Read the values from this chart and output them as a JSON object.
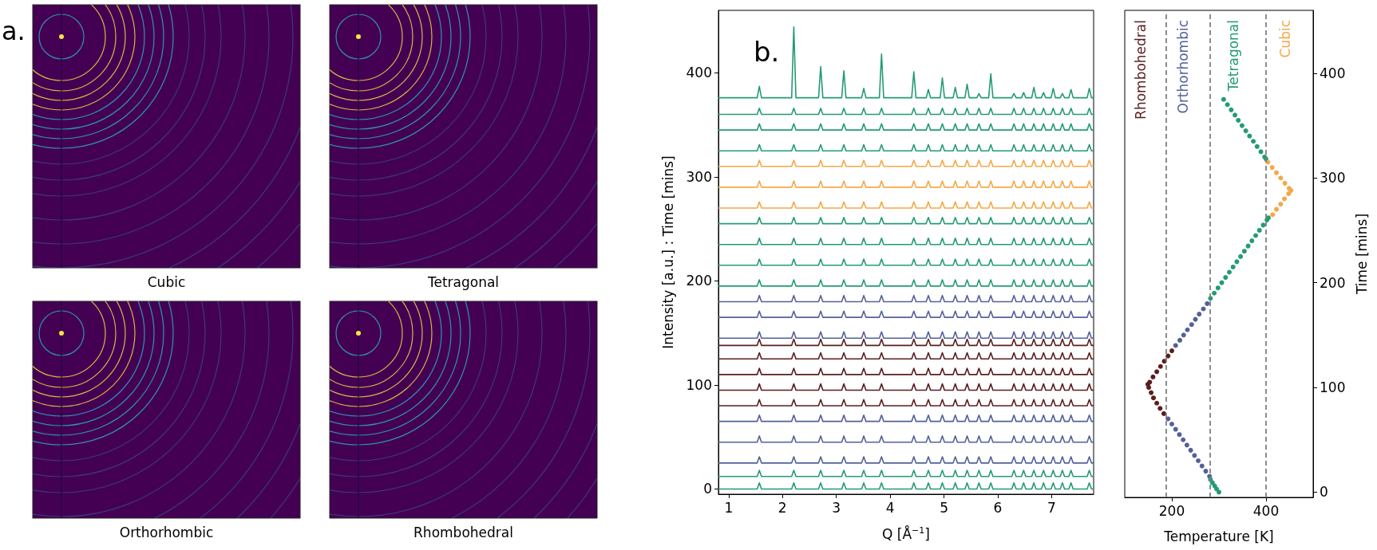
{
  "chart_data": [
    {
      "type": "other",
      "title": "a.",
      "annotations": [
        "Cubic",
        "Tetragonal",
        "Orthorhombic",
        "Rhombohedral"
      ]
    },
    {
      "type": "line",
      "title": "b.",
      "xlabel": "Q [Å$^{−1}$]",
      "ylabel": "Intensity [a.u.] : Time [mins]",
      "xlim": [
        0.81,
        7.78
      ],
      "xticks": [
        1,
        2,
        3,
        4,
        5,
        6,
        7
      ],
      "ylim": [
        -5,
        460
      ],
      "yticks": [
        0,
        100,
        200,
        300,
        400
      ],
      "x": [
        0.81,
        1.53,
        1.57,
        1.61,
        2.17,
        2.21,
        2.25,
        2.67,
        2.71,
        2.75,
        3.1,
        3.14,
        3.18,
        3.47,
        3.51,
        3.55,
        3.8,
        3.84,
        3.88,
        4.4,
        4.44,
        4.48,
        4.67,
        4.71,
        4.75,
        4.93,
        4.97,
        5.01,
        5.17,
        5.21,
        5.25,
        5.39,
        5.43,
        5.47,
        5.61,
        5.65,
        5.69,
        5.83,
        5.87,
        5.91,
        6.26,
        6.3,
        6.34,
        6.44,
        6.48,
        6.52,
        6.63,
        6.67,
        6.71,
        6.81,
        6.85,
        6.89,
        6.99,
        7.03,
        7.07,
        7.16,
        7.2,
        7.24,
        7.32,
        7.36,
        7.4,
        7.66,
        7.7,
        7.74,
        7.78
      ],
      "series": [
        {
          "color": "#239b74",
          "values": [
            0,
            0,
            6,
            0,
            0,
            6,
            0,
            0,
            6,
            0,
            0,
            6,
            0,
            0,
            6,
            0,
            0,
            6,
            0,
            0,
            6,
            0,
            0,
            6,
            0,
            0,
            6,
            0,
            0,
            6,
            0,
            0,
            6,
            0,
            0,
            6,
            0,
            0,
            6,
            0,
            0,
            6,
            0,
            0,
            6,
            0,
            0,
            6,
            0,
            0,
            6,
            0,
            0,
            6,
            0,
            0,
            6,
            0,
            0,
            6,
            0,
            0,
            6,
            0,
            0
          ]
        },
        {
          "color": "#239b74",
          "values": [
            12,
            12,
            18,
            12,
            12,
            18,
            12,
            12,
            18,
            12,
            12,
            18,
            12,
            12,
            18,
            12,
            12,
            18,
            12,
            12,
            18,
            12,
            12,
            18,
            12,
            12,
            18,
            12,
            12,
            18,
            12,
            12,
            18,
            12,
            12,
            18,
            12,
            12,
            18,
            12,
            12,
            18,
            12,
            12,
            18,
            12,
            12,
            18,
            12,
            12,
            18,
            12,
            12,
            18,
            12,
            12,
            18,
            12,
            12,
            18,
            12,
            12,
            18,
            12,
            12
          ]
        },
        {
          "color": "#52619a",
          "values": [
            25,
            25,
            31,
            25,
            25,
            31,
            25,
            25,
            31,
            25,
            25,
            31,
            25,
            25,
            31,
            25,
            25,
            31,
            25,
            25,
            31,
            25,
            25,
            31,
            25,
            25,
            31,
            25,
            25,
            31,
            25,
            25,
            31,
            25,
            25,
            31,
            25,
            25,
            31,
            25,
            25,
            31,
            25,
            25,
            31,
            25,
            25,
            31,
            25,
            25,
            31,
            25,
            25,
            31,
            25,
            25,
            31,
            25,
            25,
            31,
            25,
            25,
            31,
            25,
            25
          ]
        },
        {
          "color": "#52619a",
          "values": [
            45,
            45,
            51,
            45,
            45,
            51,
            45,
            45,
            51,
            45,
            45,
            51,
            45,
            45,
            51,
            45,
            45,
            51,
            45,
            45,
            51,
            45,
            45,
            51,
            45,
            45,
            51,
            45,
            45,
            51,
            45,
            45,
            51,
            45,
            45,
            51,
            45,
            45,
            51,
            45,
            45,
            51,
            45,
            45,
            51,
            45,
            45,
            51,
            45,
            45,
            51,
            45,
            45,
            51,
            45,
            45,
            51,
            45,
            45,
            51,
            45,
            45,
            51,
            45,
            45
          ]
        },
        {
          "color": "#52619a",
          "values": [
            65,
            65,
            71,
            65,
            65,
            71,
            65,
            65,
            71,
            65,
            65,
            71,
            65,
            65,
            71,
            65,
            65,
            71,
            65,
            65,
            71,
            65,
            65,
            71,
            65,
            65,
            71,
            65,
            65,
            71,
            65,
            65,
            71,
            65,
            65,
            71,
            65,
            65,
            71,
            65,
            65,
            71,
            65,
            65,
            71,
            65,
            65,
            71,
            65,
            65,
            71,
            65,
            65,
            71,
            65,
            65,
            71,
            65,
            65,
            71,
            65,
            65,
            71,
            65,
            65
          ]
        },
        {
          "color": "#5a1e1e",
          "values": [
            80,
            80,
            86,
            80,
            80,
            86,
            80,
            80,
            86,
            80,
            80,
            86,
            80,
            80,
            86,
            80,
            80,
            86,
            80,
            80,
            86,
            80,
            80,
            86,
            80,
            80,
            86,
            80,
            80,
            86,
            80,
            80,
            86,
            80,
            80,
            86,
            80,
            80,
            86,
            80,
            80,
            86,
            80,
            80,
            86,
            80,
            80,
            86,
            80,
            80,
            86,
            80,
            80,
            86,
            80,
            80,
            86,
            80,
            80,
            86,
            80,
            80,
            86,
            80,
            80
          ]
        },
        {
          "color": "#5a1e1e",
          "values": [
            95,
            95,
            101,
            95,
            95,
            101,
            95,
            95,
            101,
            95,
            95,
            101,
            95,
            95,
            101,
            95,
            95,
            101,
            95,
            95,
            101,
            95,
            95,
            101,
            95,
            95,
            101,
            95,
            95,
            101,
            95,
            95,
            101,
            95,
            95,
            101,
            95,
            95,
            101,
            95,
            95,
            101,
            95,
            95,
            101,
            95,
            95,
            101,
            95,
            95,
            101,
            95,
            95,
            101,
            95,
            95,
            101,
            95,
            95,
            101,
            95,
            95,
            101,
            95,
            95
          ]
        },
        {
          "color": "#5a1e1e",
          "values": [
            110,
            110,
            116,
            110,
            110,
            116,
            110,
            110,
            116,
            110,
            110,
            116,
            110,
            110,
            116,
            110,
            110,
            116,
            110,
            110,
            116,
            110,
            110,
            116,
            110,
            110,
            116,
            110,
            110,
            116,
            110,
            110,
            116,
            110,
            110,
            116,
            110,
            110,
            116,
            110,
            110,
            116,
            110,
            110,
            116,
            110,
            110,
            116,
            110,
            110,
            116,
            110,
            110,
            116,
            110,
            110,
            116,
            110,
            110,
            116,
            110,
            110,
            116,
            110,
            110
          ]
        },
        {
          "color": "#5a1e1e",
          "values": [
            125,
            125,
            131,
            125,
            125,
            131,
            125,
            125,
            131,
            125,
            125,
            131,
            125,
            125,
            131,
            125,
            125,
            131,
            125,
            125,
            131,
            125,
            125,
            131,
            125,
            125,
            131,
            125,
            125,
            131,
            125,
            125,
            131,
            125,
            125,
            131,
            125,
            125,
            131,
            125,
            125,
            131,
            125,
            125,
            131,
            125,
            125,
            131,
            125,
            125,
            131,
            125,
            125,
            131,
            125,
            125,
            131,
            125,
            125,
            131,
            125,
            125,
            131,
            125,
            125
          ]
        },
        {
          "color": "#5a1e1e",
          "values": [
            138,
            138,
            144,
            138,
            138,
            144,
            138,
            138,
            144,
            138,
            138,
            144,
            138,
            138,
            144,
            138,
            138,
            144,
            138,
            138,
            144,
            138,
            138,
            144,
            138,
            138,
            144,
            138,
            138,
            144,
            138,
            138,
            144,
            138,
            138,
            144,
            138,
            138,
            144,
            138,
            138,
            144,
            138,
            138,
            144,
            138,
            138,
            144,
            138,
            138,
            144,
            138,
            138,
            144,
            138,
            138,
            144,
            138,
            138,
            144,
            138,
            138,
            144,
            138,
            138
          ]
        },
        {
          "color": "#52619a",
          "values": [
            145,
            145,
            151,
            145,
            145,
            151,
            145,
            145,
            151,
            145,
            145,
            151,
            145,
            145,
            151,
            145,
            145,
            151,
            145,
            145,
            151,
            145,
            145,
            151,
            145,
            145,
            151,
            145,
            145,
            151,
            145,
            145,
            151,
            145,
            145,
            151,
            145,
            145,
            151,
            145,
            145,
            151,
            145,
            145,
            151,
            145,
            145,
            151,
            145,
            145,
            151,
            145,
            145,
            151,
            145,
            145,
            151,
            145,
            145,
            151,
            145,
            145,
            151,
            145,
            145
          ]
        },
        {
          "color": "#52619a",
          "values": [
            165,
            165,
            171,
            165,
            165,
            171,
            165,
            165,
            171,
            165,
            165,
            171,
            165,
            165,
            171,
            165,
            165,
            171,
            165,
            165,
            171,
            165,
            165,
            171,
            165,
            165,
            171,
            165,
            165,
            171,
            165,
            165,
            171,
            165,
            165,
            171,
            165,
            165,
            171,
            165,
            165,
            171,
            165,
            165,
            171,
            165,
            165,
            171,
            165,
            165,
            171,
            165,
            165,
            171,
            165,
            165,
            171,
            165,
            165,
            171,
            165,
            165,
            171,
            165,
            165
          ]
        },
        {
          "color": "#52619a",
          "values": [
            180,
            180,
            186,
            180,
            180,
            186,
            180,
            180,
            186,
            180,
            180,
            186,
            180,
            180,
            186,
            180,
            180,
            186,
            180,
            180,
            186,
            180,
            180,
            186,
            180,
            180,
            186,
            180,
            180,
            186,
            180,
            180,
            186,
            180,
            180,
            186,
            180,
            180,
            186,
            180,
            180,
            186,
            180,
            180,
            186,
            180,
            180,
            186,
            180,
            180,
            186,
            180,
            180,
            186,
            180,
            180,
            186,
            180,
            180,
            186,
            180,
            180,
            186,
            180,
            180
          ]
        },
        {
          "color": "#239b74",
          "values": [
            195,
            195,
            201,
            195,
            195,
            201,
            195,
            195,
            201,
            195,
            195,
            201,
            195,
            195,
            201,
            195,
            195,
            201,
            195,
            195,
            201,
            195,
            195,
            201,
            195,
            195,
            201,
            195,
            195,
            201,
            195,
            195,
            201,
            195,
            195,
            201,
            195,
            195,
            201,
            195,
            195,
            201,
            195,
            195,
            201,
            195,
            195,
            201,
            195,
            195,
            201,
            195,
            195,
            201,
            195,
            195,
            201,
            195,
            195,
            201,
            195,
            195,
            201,
            195,
            195
          ]
        },
        {
          "color": "#239b74",
          "values": [
            215,
            215,
            221,
            215,
            215,
            221,
            215,
            215,
            221,
            215,
            215,
            221,
            215,
            215,
            221,
            215,
            215,
            221,
            215,
            215,
            221,
            215,
            215,
            221,
            215,
            215,
            221,
            215,
            215,
            221,
            215,
            215,
            221,
            215,
            215,
            221,
            215,
            215,
            221,
            215,
            215,
            221,
            215,
            215,
            221,
            215,
            215,
            221,
            215,
            215,
            221,
            215,
            215,
            221,
            215,
            215,
            221,
            215,
            215,
            221,
            215,
            215,
            221,
            215,
            215
          ]
        },
        {
          "color": "#239b74",
          "values": [
            235,
            235,
            241,
            235,
            235,
            241,
            235,
            235,
            241,
            235,
            235,
            241,
            235,
            235,
            241,
            235,
            235,
            241,
            235,
            235,
            241,
            235,
            235,
            241,
            235,
            235,
            241,
            235,
            235,
            241,
            235,
            235,
            241,
            235,
            235,
            241,
            235,
            235,
            241,
            235,
            235,
            241,
            235,
            235,
            241,
            235,
            235,
            241,
            235,
            235,
            241,
            235,
            235,
            241,
            235,
            235,
            241,
            235,
            235,
            241,
            235,
            235,
            241,
            235,
            235
          ]
        },
        {
          "color": "#239b74",
          "values": [
            255,
            255,
            261,
            255,
            255,
            261,
            255,
            255,
            261,
            255,
            255,
            261,
            255,
            255,
            261,
            255,
            255,
            261,
            255,
            255,
            261,
            255,
            255,
            261,
            255,
            255,
            261,
            255,
            255,
            261,
            255,
            255,
            261,
            255,
            255,
            261,
            255,
            255,
            261,
            255,
            255,
            261,
            255,
            255,
            261,
            255,
            255,
            261,
            255,
            255,
            261,
            255,
            255,
            261,
            255,
            255,
            261,
            255,
            255,
            261,
            255,
            255,
            261,
            255,
            255
          ]
        },
        {
          "color": "#f4a846",
          "values": [
            270,
            270,
            276,
            270,
            270,
            276,
            270,
            270,
            276,
            270,
            270,
            276,
            270,
            270,
            276,
            270,
            270,
            276,
            270,
            270,
            276,
            270,
            270,
            276,
            270,
            270,
            276,
            270,
            270,
            276,
            270,
            270,
            276,
            270,
            270,
            276,
            270,
            270,
            276,
            270,
            270,
            276,
            270,
            270,
            276,
            270,
            270,
            276,
            270,
            270,
            276,
            270,
            270,
            276,
            270,
            270,
            276,
            270,
            270,
            276,
            270,
            270,
            276,
            270,
            270
          ]
        },
        {
          "color": "#f4a846",
          "values": [
            290,
            290,
            296,
            290,
            290,
            296,
            290,
            290,
            296,
            290,
            290,
            296,
            290,
            290,
            296,
            290,
            290,
            296,
            290,
            290,
            296,
            290,
            290,
            296,
            290,
            290,
            296,
            290,
            290,
            296,
            290,
            290,
            296,
            290,
            290,
            296,
            290,
            290,
            296,
            290,
            290,
            296,
            290,
            290,
            296,
            290,
            290,
            296,
            290,
            290,
            296,
            290,
            290,
            296,
            290,
            290,
            296,
            290,
            290,
            296,
            290,
            290,
            296,
            290,
            290
          ]
        },
        {
          "color": "#f4a846",
          "values": [
            310,
            310,
            316,
            310,
            310,
            316,
            310,
            310,
            316,
            310,
            310,
            316,
            310,
            310,
            316,
            310,
            310,
            316,
            310,
            310,
            316,
            310,
            310,
            316,
            310,
            310,
            316,
            310,
            310,
            316,
            310,
            310,
            316,
            310,
            310,
            316,
            310,
            310,
            316,
            310,
            310,
            316,
            310,
            310,
            316,
            310,
            310,
            316,
            310,
            310,
            316,
            310,
            310,
            316,
            310,
            310,
            316,
            310,
            310,
            316,
            310,
            310,
            316,
            310,
            310
          ]
        },
        {
          "color": "#239b74",
          "values": [
            325,
            325,
            331,
            325,
            325,
            331,
            325,
            325,
            331,
            325,
            325,
            331,
            325,
            325,
            331,
            325,
            325,
            331,
            325,
            325,
            331,
            325,
            325,
            331,
            325,
            325,
            331,
            325,
            325,
            331,
            325,
            325,
            331,
            325,
            325,
            331,
            325,
            325,
            331,
            325,
            325,
            331,
            325,
            325,
            331,
            325,
            325,
            331,
            325,
            325,
            331,
            325,
            325,
            331,
            325,
            325,
            331,
            325,
            325,
            331,
            325,
            325,
            331,
            325,
            325
          ]
        },
        {
          "color": "#239b74",
          "values": [
            345,
            345,
            351,
            345,
            345,
            351,
            345,
            345,
            351,
            345,
            345,
            351,
            345,
            345,
            351,
            345,
            345,
            351,
            345,
            345,
            351,
            345,
            345,
            351,
            345,
            345,
            351,
            345,
            345,
            351,
            345,
            345,
            351,
            345,
            345,
            351,
            345,
            345,
            351,
            345,
            345,
            351,
            345,
            345,
            351,
            345,
            345,
            351,
            345,
            345,
            351,
            345,
            345,
            351,
            345,
            345,
            351,
            345,
            345,
            351,
            345,
            345,
            351,
            345,
            345
          ]
        },
        {
          "color": "#239b74",
          "values": [
            360,
            360,
            366,
            360,
            360,
            366,
            360,
            360,
            366,
            360,
            360,
            366,
            360,
            360,
            366,
            360,
            360,
            366,
            360,
            360,
            366,
            360,
            360,
            366,
            360,
            360,
            366,
            360,
            360,
            366,
            360,
            360,
            366,
            360,
            360,
            366,
            360,
            360,
            366,
            360,
            360,
            366,
            360,
            360,
            366,
            360,
            360,
            366,
            360,
            360,
            366,
            360,
            360,
            366,
            360,
            360,
            366,
            360,
            360,
            366,
            360,
            360,
            366,
            360,
            360
          ]
        },
        {
          "color": "#239b74",
          "values": [
            376,
            376,
            387,
            376,
            376,
            444,
            376,
            376,
            406,
            376,
            376,
            402,
            376,
            376,
            385,
            376,
            376,
            418,
            376,
            376,
            401,
            376,
            376,
            384,
            376,
            376,
            395,
            376,
            376,
            386,
            376,
            376,
            389,
            376,
            376,
            380,
            376,
            376,
            399,
            376,
            376,
            380,
            376,
            376,
            381,
            376,
            376,
            386,
            376,
            376,
            381,
            376,
            376,
            385,
            376,
            376,
            380,
            376,
            376,
            384,
            376,
            376,
            385,
            376,
            376
          ]
        }
      ]
    },
    {
      "type": "scatter",
      "marker": "circle",
      "xlabel": "Temperature [K]",
      "ylabel": "Time [mins]",
      "xlim": [
        100,
        500
      ],
      "xticks": [
        200,
        400
      ],
      "ylim": [
        -5,
        460
      ],
      "yticks": [
        0,
        100,
        200,
        300,
        400
      ],
      "ref_lines": [
        {
          "axis": "x",
          "value": 187,
          "line_style": "dashed",
          "color": "#808080"
        },
        {
          "axis": "x",
          "value": 281,
          "line_style": "dashed",
          "color": "#808080"
        },
        {
          "axis": "x",
          "value": 400,
          "line_style": "dashed",
          "color": "#808080"
        }
      ],
      "annotations": [
        "Rhombohedral",
        "Orthorhombic",
        "Tetragonal",
        "Cubic"
      ],
      "series": [
        {
          "color": "#5a1e1e",
          "x": [
            183,
            175,
            168,
            161,
            156,
            151,
            149,
            153,
            160,
            168,
            176,
            184,
            192,
            200
          ],
          "values": [
            75,
            80,
            85,
            90,
            95,
            100,
            103,
            105,
            110,
            115,
            120,
            125,
            130,
            135
          ]
        },
        {
          "color": "#52619a",
          "x": [
            280,
            272,
            264,
            256,
            248,
            240,
            232,
            224,
            216,
            208,
            200,
            192,
            208,
            217,
            225,
            233,
            242,
            250,
            258,
            267,
            275
          ],
          "values": [
            15,
            20,
            25,
            30,
            35,
            40,
            45,
            50,
            55,
            60,
            65,
            70,
            140,
            145,
            150,
            155,
            160,
            165,
            170,
            175,
            180
          ]
        },
        {
          "color": "#239b74",
          "x": [
            300,
            295,
            291,
            286,
            282,
            282,
            290,
            298,
            306,
            314,
            322,
            330,
            338,
            346,
            354,
            362,
            370,
            378,
            386,
            394,
            402,
            405,
            400,
            397,
            389,
            381,
            373,
            365,
            357,
            349,
            341,
            334,
            326,
            318,
            310
          ],
          "values": [
            0,
            3,
            6,
            9,
            12,
            185,
            190,
            195,
            200,
            205,
            210,
            215,
            220,
            225,
            230,
            235,
            240,
            245,
            250,
            255,
            260,
            262,
            318,
            320,
            325,
            330,
            335,
            340,
            345,
            350,
            355,
            360,
            365,
            370,
            375
          ]
        },
        {
          "color": "#f4a846",
          "x": [
            414,
            422,
            431,
            439,
            448,
            453,
            449,
            440,
            431,
            422,
            413,
            404
          ],
          "values": [
            265,
            270,
            275,
            280,
            285,
            288,
            290,
            295,
            300,
            305,
            310,
            315
          ]
        }
      ]
    }
  ]
}
